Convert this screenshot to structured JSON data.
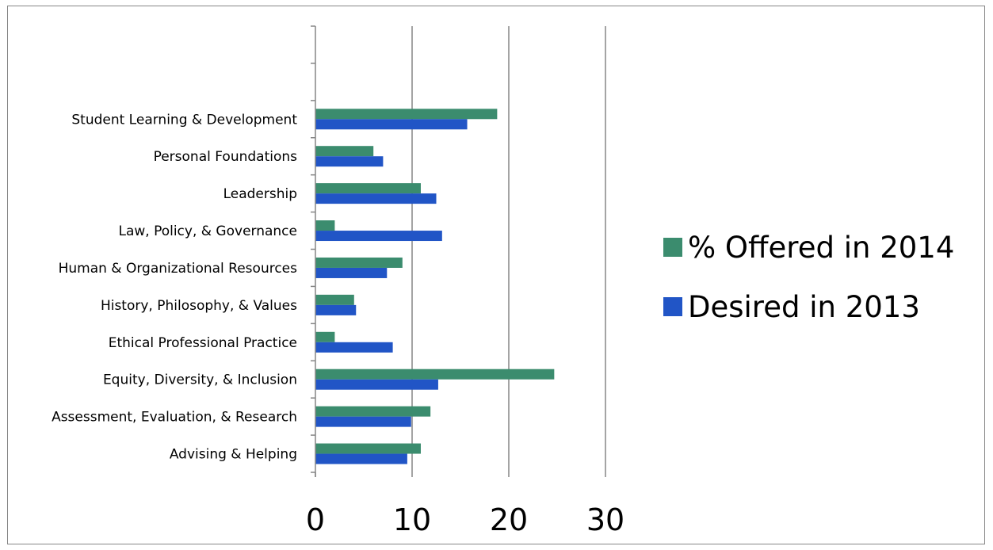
{
  "chart_data": {
    "type": "bar",
    "orientation": "horizontal",
    "title": "",
    "xlabel": "",
    "ylabel": "",
    "xlim": [
      0,
      30
    ],
    "x_ticks": [
      "0",
      "10",
      "20",
      "30"
    ],
    "grid": true,
    "legend_position": "right",
    "categories": [
      "Student Learning & Development",
      "Personal Foundations",
      "Leadership",
      "Law, Policy, & Governance",
      "Human & Organizational Resources",
      "History, Philosophy, & Values",
      "Ethical Professional Practice",
      "Equity, Diversity, & Inclusion",
      "Assessment, Evaluation, & Research",
      "Advising & Helping"
    ],
    "empty_slots_above": 2,
    "series": [
      {
        "name": "% Offered in 2014",
        "color": "#3b8c6e",
        "values": [
          18.8,
          6,
          10.9,
          2,
          9,
          4,
          2,
          24.7,
          11.9,
          10.9
        ]
      },
      {
        "name": "Desired in 2013",
        "color": "#2155c6",
        "values": [
          15.7,
          7,
          12.5,
          13.1,
          7.4,
          4.2,
          8,
          12.7,
          9.9,
          9.5
        ]
      }
    ]
  }
}
